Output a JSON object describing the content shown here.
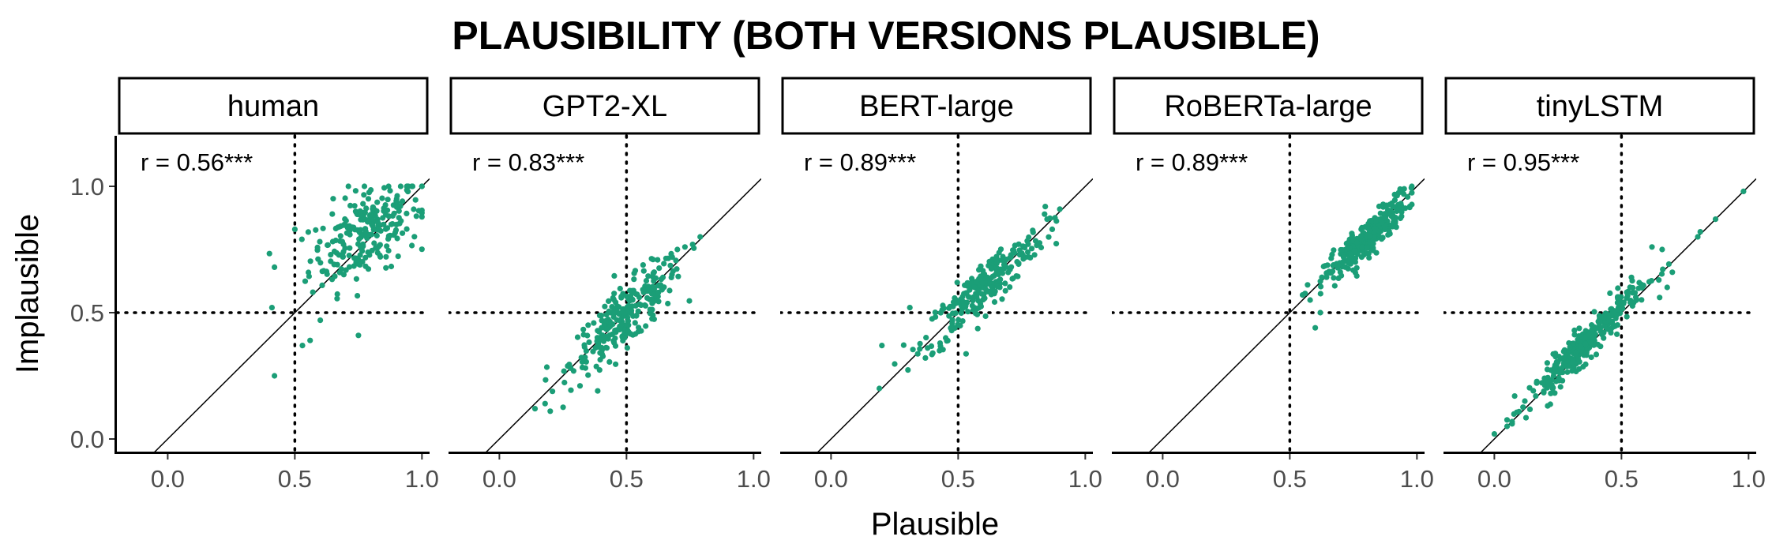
{
  "figure": {
    "title": "PLAUSIBILITY (BOTH VERSIONS PLAUSIBLE)",
    "xlabel": "Plausible",
    "ylabel": "Implausible"
  },
  "chart_data": {
    "type": "scatter",
    "title": "PLAUSIBILITY (BOTH VERSIONS PLAUSIBLE)",
    "xlabel": "Plausible",
    "ylabel": "Implausible",
    "xlim": [
      -0.2,
      1.03
    ],
    "ylim": [
      -0.05,
      1.2
    ],
    "x_ticks": [
      "0.0",
      "0.5",
      "1.0"
    ],
    "y_ticks": [
      "0.0",
      "0.5",
      "1.0"
    ],
    "point_color": "#1b9e77",
    "reference_lines": {
      "identity": "y = x",
      "vertical_dotted_x": 0.5,
      "horizontal_dotted_y": 0.5
    },
    "grid": false,
    "legend": "none",
    "panels": [
      {
        "label": "human",
        "r_label": "r = 0.56***",
        "cluster": {
          "n": 240,
          "x_mean": 0.78,
          "x_sd": 0.11,
          "slope": 0.5,
          "y_at_mean": 0.82,
          "resid_sd": 0.09,
          "x_min": 0.4,
          "x_max": 1.0,
          "y_min": 0.2,
          "y_max": 1.0
        },
        "points": [
          [
            0.42,
            0.68
          ],
          [
            0.41,
            0.52
          ],
          [
            0.42,
            0.25
          ],
          [
            0.53,
            0.37
          ],
          [
            0.56,
            0.39
          ],
          [
            0.6,
            0.47
          ],
          [
            0.75,
            0.41
          ],
          [
            0.5,
            0.83
          ]
        ]
      },
      {
        "label": "GPT2-XL",
        "r_label": "r = 0.83***",
        "cluster": {
          "n": 260,
          "x_mean": 0.5,
          "x_sd": 0.11,
          "slope": 0.85,
          "y_at_mean": 0.49,
          "resid_sd": 0.06,
          "x_min": 0.1,
          "x_max": 0.8,
          "y_min": 0.05,
          "y_max": 0.85
        },
        "points": [
          [
            0.14,
            0.12
          ],
          [
            0.2,
            0.11
          ],
          [
            0.18,
            0.14
          ],
          [
            0.73,
            0.76
          ],
          [
            0.76,
            0.77
          ],
          [
            0.79,
            0.8
          ],
          [
            0.68,
            0.72
          ],
          [
            0.7,
            0.75
          ]
        ]
      },
      {
        "label": "BERT-large",
        "r_label": "r = 0.89***",
        "cluster": {
          "n": 250,
          "x_mean": 0.6,
          "x_sd": 0.12,
          "slope": 0.9,
          "y_at_mean": 0.6,
          "resid_sd": 0.05,
          "x_min": 0.15,
          "x_max": 0.9,
          "y_min": 0.15,
          "y_max": 0.92
        },
        "points": [
          [
            0.19,
            0.2
          ],
          [
            0.2,
            0.37
          ],
          [
            0.31,
            0.52
          ],
          [
            0.38,
            0.36
          ],
          [
            0.4,
            0.34
          ],
          [
            0.85,
            0.87
          ],
          [
            0.84,
            0.89
          ],
          [
            0.87,
            0.83
          ]
        ]
      },
      {
        "label": "RoBERTa-large",
        "r_label": "r = 0.89***",
        "cluster": {
          "n": 300,
          "x_mean": 0.8,
          "x_sd": 0.08,
          "slope": 0.95,
          "y_at_mean": 0.79,
          "resid_sd": 0.035,
          "x_min": 0.55,
          "x_max": 0.98,
          "y_min": 0.4,
          "y_max": 1.0
        },
        "points": [
          [
            0.55,
            0.57
          ],
          [
            0.57,
            0.61
          ],
          [
            0.58,
            0.55
          ],
          [
            0.6,
            0.44
          ],
          [
            0.62,
            0.5
          ],
          [
            0.94,
            0.98
          ],
          [
            0.95,
            0.99
          ]
        ]
      },
      {
        "label": "tinyLSTM",
        "r_label": "r = 0.95***",
        "cluster": {
          "n": 320,
          "x_mean": 0.36,
          "x_sd": 0.11,
          "slope": 1.0,
          "y_at_mean": 0.38,
          "resid_sd": 0.035,
          "x_min": 0.05,
          "x_max": 0.75,
          "y_min": 0.05,
          "y_max": 0.8
        },
        "points": [
          [
            0.0,
            0.02
          ],
          [
            0.07,
            0.06
          ],
          [
            0.08,
            0.17
          ],
          [
            0.12,
            0.15
          ],
          [
            0.62,
            0.76
          ],
          [
            0.66,
            0.75
          ],
          [
            0.7,
            0.66
          ],
          [
            0.8,
            0.8
          ],
          [
            0.81,
            0.82
          ],
          [
            0.87,
            0.87
          ],
          [
            0.98,
            0.98
          ],
          [
            0.65,
            0.56
          ],
          [
            0.68,
            0.6
          ]
        ]
      }
    ]
  }
}
